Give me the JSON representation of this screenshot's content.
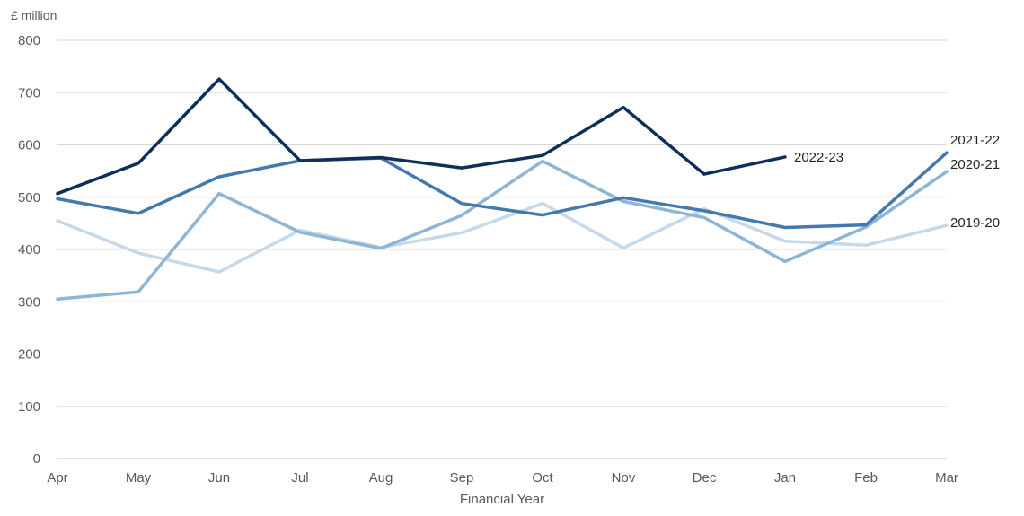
{
  "chart_data": {
    "type": "line",
    "ylabel": "£ million",
    "xlabel": "Financial Year",
    "ylim": [
      0,
      800
    ],
    "yticks": [
      0,
      100,
      200,
      300,
      400,
      500,
      600,
      700,
      800
    ],
    "grid": true,
    "categories": [
      "Apr",
      "May",
      "Jun",
      "Jul",
      "Aug",
      "Sep",
      "Oct",
      "Nov",
      "Dec",
      "Jan",
      "Feb",
      "Mar"
    ],
    "series": [
      {
        "name": "2019-20",
        "color": "#c5d9ea",
        "values": [
          455,
          393,
          357,
          437,
          404,
          432,
          488,
          403,
          478,
          416,
          408,
          446
        ]
      },
      {
        "name": "2020-21",
        "color": "#8cb5d6",
        "values": [
          305,
          319,
          507,
          433,
          402,
          465,
          569,
          492,
          461,
          377,
          443,
          549
        ]
      },
      {
        "name": "2021-22",
        "color": "#4479ae",
        "values": [
          497,
          469,
          539,
          570,
          575,
          488,
          466,
          499,
          474,
          442,
          447,
          585
        ]
      },
      {
        "name": "2022-23",
        "color": "#0d2f5a",
        "values": [
          507,
          565,
          726,
          570,
          576,
          556,
          580,
          672,
          544,
          577,
          null,
          null
        ]
      }
    ]
  }
}
